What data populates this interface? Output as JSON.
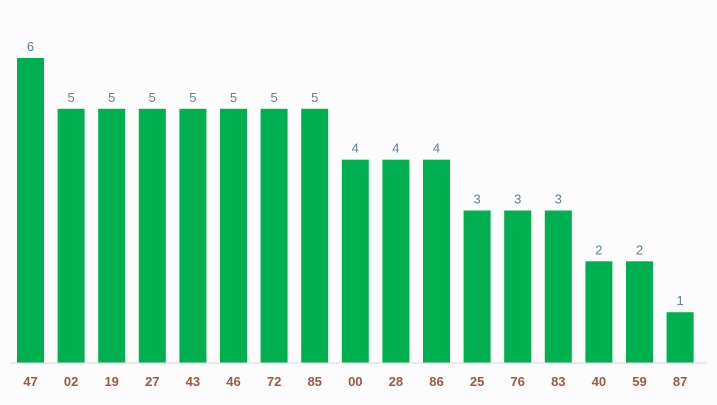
{
  "chart_data": {
    "type": "bar",
    "categories": [
      "47",
      "02",
      "19",
      "27",
      "43",
      "46",
      "72",
      "85",
      "00",
      "28",
      "86",
      "25",
      "76",
      "83",
      "40",
      "59",
      "87"
    ],
    "values": [
      6,
      5,
      5,
      5,
      5,
      5,
      5,
      5,
      4,
      4,
      4,
      3,
      3,
      3,
      2,
      2,
      1
    ],
    "title": "",
    "xlabel": "",
    "ylabel": "",
    "ylim": [
      0,
      6
    ],
    "grid": false,
    "legend": "none",
    "colors": {
      "bar": "#00b050",
      "value_label": "#5f7f99",
      "tick_label": "#a0583f"
    }
  }
}
